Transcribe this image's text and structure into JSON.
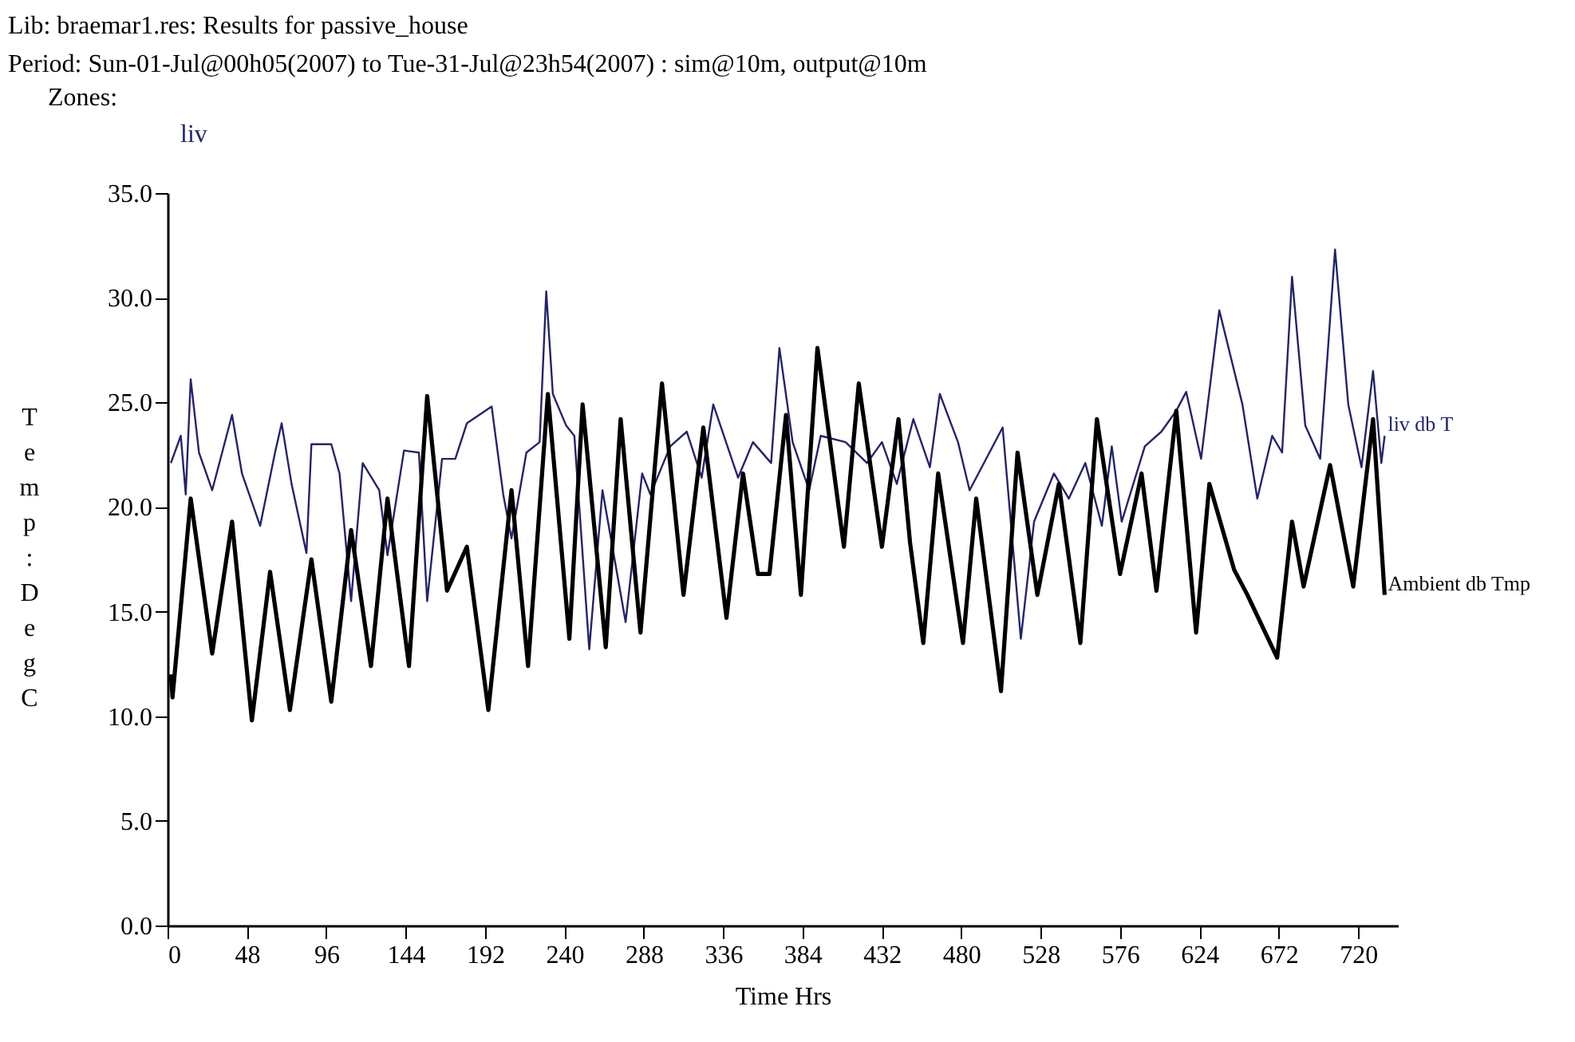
{
  "chart_data": {
    "type": "line",
    "title": "Lib: braemar1.res: Results for passive_house",
    "subtitle": "Period: Sun-01-Jul@00h05(2007) to Tue-31-Jul@23h54(2007) : sim@10m, output@10m",
    "annotations": [
      "Zones:",
      "liv"
    ],
    "xlabel": "Time Hrs",
    "ylabel": "Temp: DegC",
    "xlim": [
      0,
      744
    ],
    "xticks": [
      0,
      48,
      96,
      144,
      192,
      240,
      288,
      336,
      384,
      432,
      480,
      528,
      576,
      624,
      672,
      720
    ],
    "ylim": [
      0,
      35
    ],
    "yticks": [
      {
        "value": 0,
        "label": "0.0"
      },
      {
        "value": 5,
        "label": "5.0"
      },
      {
        "value": 10,
        "label": "10.0"
      },
      {
        "value": 15,
        "label": "15.0"
      },
      {
        "value": 20,
        "label": "20.0"
      },
      {
        "value": 25,
        "label": "25.0"
      },
      {
        "value": 30,
        "label": "30.0"
      },
      {
        "value": 35,
        "label": "35.0"
      }
    ],
    "grid": false,
    "marker": "none",
    "line_style": "solid",
    "series": [
      {
        "name": "liv db T",
        "color": "#23236e",
        "x": [
          2,
          8,
          11,
          14,
          19,
          27,
          39,
          45,
          56,
          65,
          69,
          75,
          84,
          87,
          99,
          104,
          111,
          118,
          128,
          133,
          143,
          152,
          157,
          166,
          174,
          181,
          196,
          203,
          208,
          217,
          225,
          229,
          233,
          241,
          246,
          255,
          263,
          277,
          287,
          292,
          304,
          314,
          323,
          330,
          345,
          354,
          365,
          370,
          378,
          388,
          395,
          410,
          423,
          432,
          441,
          451,
          461,
          467,
          478,
          485,
          505,
          516,
          524,
          536,
          545,
          555,
          565,
          571,
          577,
          591,
          601,
          610,
          616,
          625,
          636,
          650,
          659,
          668,
          674,
          680,
          688,
          697,
          706,
          714,
          722,
          729,
          734,
          736
        ],
        "values": [
          22.1,
          23.4,
          20.6,
          26.1,
          22.6,
          20.8,
          24.4,
          21.6,
          19.1,
          22.6,
          24.0,
          21.1,
          17.8,
          23.0,
          23.0,
          21.6,
          15.5,
          22.1,
          20.8,
          17.7,
          22.7,
          22.6,
          15.5,
          22.3,
          22.3,
          24.0,
          24.8,
          20.6,
          18.5,
          22.6,
          23.1,
          30.3,
          25.4,
          23.9,
          23.4,
          13.2,
          20.8,
          14.5,
          21.6,
          20.6,
          22.9,
          23.6,
          21.4,
          24.9,
          21.4,
          23.1,
          22.1,
          27.6,
          23.1,
          20.8,
          23.4,
          23.1,
          22.1,
          23.1,
          21.1,
          24.2,
          21.9,
          25.4,
          23.1,
          20.8,
          23.8,
          13.7,
          19.3,
          21.6,
          20.4,
          22.1,
          19.1,
          22.9,
          19.3,
          22.9,
          23.6,
          24.6,
          25.5,
          22.3,
          29.4,
          24.9,
          20.4,
          23.4,
          22.6,
          31.0,
          23.9,
          22.3,
          32.3,
          24.9,
          21.9,
          26.5,
          22.1,
          23.4
        ]
      },
      {
        "name": "Ambient db Tmp",
        "color": "#000000",
        "x": [
          2,
          3,
          14,
          27,
          39,
          51,
          62,
          74,
          87,
          99,
          111,
          123,
          133,
          146,
          157,
          169,
          181,
          194,
          208,
          218,
          230,
          243,
          251,
          265,
          274,
          286,
          299,
          312,
          324,
          338,
          348,
          357,
          364,
          374,
          383,
          393,
          409,
          418,
          432,
          442,
          449,
          457,
          466,
          481,
          489,
          504,
          514,
          526,
          539,
          552,
          562,
          576,
          589,
          598,
          610,
          622,
          630,
          645,
          653,
          671,
          680,
          687,
          703,
          717,
          729,
          736
        ],
        "values": [
          12.0,
          10.9,
          20.4,
          13.0,
          19.3,
          9.8,
          16.9,
          10.3,
          17.5,
          10.7,
          18.9,
          12.4,
          20.4,
          12.4,
          25.3,
          16.0,
          18.1,
          10.3,
          20.8,
          12.4,
          25.4,
          13.7,
          24.9,
          13.3,
          24.2,
          14.0,
          25.9,
          15.8,
          23.8,
          14.7,
          21.6,
          16.8,
          16.8,
          24.4,
          15.8,
          27.6,
          18.1,
          25.9,
          18.1,
          24.2,
          18.3,
          13.5,
          21.6,
          13.5,
          20.4,
          11.2,
          22.6,
          15.8,
          21.1,
          13.5,
          24.2,
          16.8,
          21.6,
          16.0,
          24.6,
          14.0,
          21.1,
          17.0,
          15.8,
          12.8,
          19.3,
          16.2,
          22.0,
          16.2,
          24.2,
          15.8
        ]
      }
    ]
  }
}
